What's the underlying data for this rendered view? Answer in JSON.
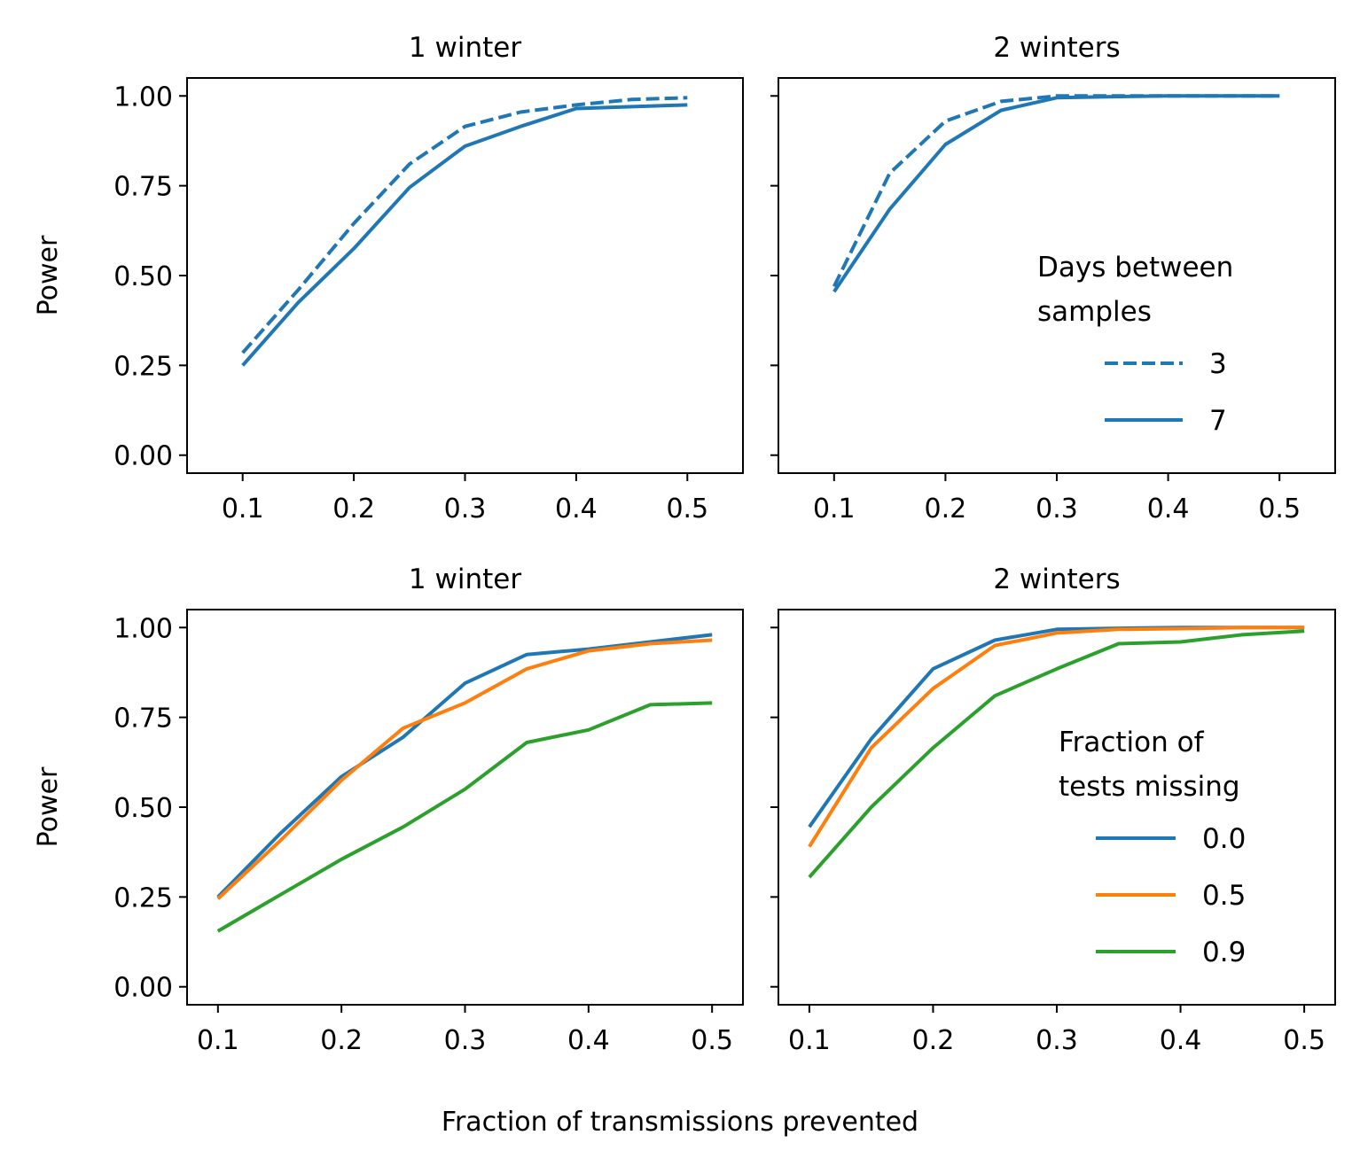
{
  "figure": {
    "xlabel": "Fraction of transmissions prevented"
  },
  "colors": {
    "blue": "#1f77b4",
    "orange": "#ff7f0e",
    "green": "#2ca02c"
  },
  "chart_data": [
    {
      "type": "line",
      "title": "1 winter",
      "ylabel": "Power",
      "xlim": [
        0.05,
        0.55
      ],
      "ylim": [
        -0.05,
        1.05
      ],
      "xticks": [
        "0.1",
        "0.2",
        "0.3",
        "0.4",
        "0.5"
      ],
      "yticks": [
        "0.00",
        "0.25",
        "0.50",
        "0.75",
        "1.00"
      ],
      "show_yticklabels": true,
      "x": [
        0.1,
        0.15,
        0.2,
        0.25,
        0.3,
        0.35,
        0.4,
        0.45,
        0.5
      ],
      "series": [
        {
          "name": "3",
          "color": "#1f77b4",
          "dash": "dashed",
          "values": [
            0.285,
            0.46,
            0.645,
            0.81,
            0.915,
            0.955,
            0.975,
            0.99,
            0.995
          ]
        },
        {
          "name": "7",
          "color": "#1f77b4",
          "dash": "solid",
          "values": [
            0.25,
            0.425,
            0.575,
            0.745,
            0.86,
            0.915,
            0.965,
            0.97,
            0.975
          ]
        }
      ]
    },
    {
      "type": "line",
      "title": "2 winters",
      "ylabel": "",
      "xlim": [
        0.05,
        0.55
      ],
      "ylim": [
        -0.05,
        1.05
      ],
      "xticks": [
        "0.1",
        "0.2",
        "0.3",
        "0.4",
        "0.5"
      ],
      "yticks": [
        "0.00",
        "0.25",
        "0.50",
        "0.75",
        "1.00"
      ],
      "show_yticklabels": false,
      "legend": {
        "title": [
          "Days between",
          "samples"
        ],
        "position": "center-right"
      },
      "x": [
        0.1,
        0.15,
        0.2,
        0.25,
        0.3,
        0.35,
        0.4,
        0.45,
        0.5
      ],
      "series": [
        {
          "name": "3",
          "color": "#1f77b4",
          "dash": "dashed",
          "values": [
            0.47,
            0.785,
            0.93,
            0.985,
            1.0,
            1.0,
            1.0,
            1.0,
            1.0
          ]
        },
        {
          "name": "7",
          "color": "#1f77b4",
          "dash": "solid",
          "values": [
            0.455,
            0.685,
            0.865,
            0.96,
            0.995,
            0.998,
            1.0,
            1.0,
            1.0
          ]
        }
      ]
    },
    {
      "type": "line",
      "title": "1 winter",
      "ylabel": "Power",
      "xlim": [
        0.075,
        0.525
      ],
      "ylim": [
        -0.05,
        1.05
      ],
      "xticks": [
        "0.1",
        "0.2",
        "0.3",
        "0.4",
        "0.5"
      ],
      "yticks": [
        "0.00",
        "0.25",
        "0.50",
        "0.75",
        "1.00"
      ],
      "show_yticklabels": true,
      "x": [
        0.1,
        0.15,
        0.2,
        0.25,
        0.3,
        0.35,
        0.4,
        0.45,
        0.5
      ],
      "series": [
        {
          "name": "0.0",
          "color": "#1f77b4",
          "dash": "solid",
          "values": [
            0.25,
            0.425,
            0.585,
            0.695,
            0.845,
            0.925,
            0.94,
            0.96,
            0.98
          ]
        },
        {
          "name": "0.5",
          "color": "#ff7f0e",
          "dash": "solid",
          "values": [
            0.245,
            0.405,
            0.575,
            0.72,
            0.79,
            0.885,
            0.935,
            0.955,
            0.965
          ]
        },
        {
          "name": "0.9",
          "color": "#2ca02c",
          "dash": "solid",
          "values": [
            0.155,
            0.255,
            0.355,
            0.445,
            0.55,
            0.68,
            0.715,
            0.785,
            0.79
          ]
        }
      ]
    },
    {
      "type": "line",
      "title": "2 winters",
      "ylabel": "",
      "xlim": [
        0.075,
        0.525
      ],
      "ylim": [
        -0.05,
        1.05
      ],
      "xticks": [
        "0.1",
        "0.2",
        "0.3",
        "0.4",
        "0.5"
      ],
      "yticks": [
        "0.00",
        "0.25",
        "0.50",
        "0.75",
        "1.00"
      ],
      "show_yticklabels": false,
      "legend": {
        "title": [
          "Fraction of",
          "tests missing"
        ],
        "position": "center-right"
      },
      "x": [
        0.1,
        0.15,
        0.2,
        0.25,
        0.3,
        0.35,
        0.4,
        0.45,
        0.5
      ],
      "series": [
        {
          "name": "0.0",
          "color": "#1f77b4",
          "dash": "solid",
          "values": [
            0.445,
            0.69,
            0.885,
            0.965,
            0.995,
            0.998,
            1.0,
            1.0,
            1.0
          ]
        },
        {
          "name": "0.5",
          "color": "#ff7f0e",
          "dash": "solid",
          "values": [
            0.39,
            0.665,
            0.83,
            0.95,
            0.985,
            0.995,
            0.997,
            1.0,
            1.0
          ]
        },
        {
          "name": "0.9",
          "color": "#2ca02c",
          "dash": "solid",
          "values": [
            0.305,
            0.5,
            0.665,
            0.81,
            0.885,
            0.955,
            0.96,
            0.98,
            0.99
          ]
        }
      ]
    }
  ]
}
